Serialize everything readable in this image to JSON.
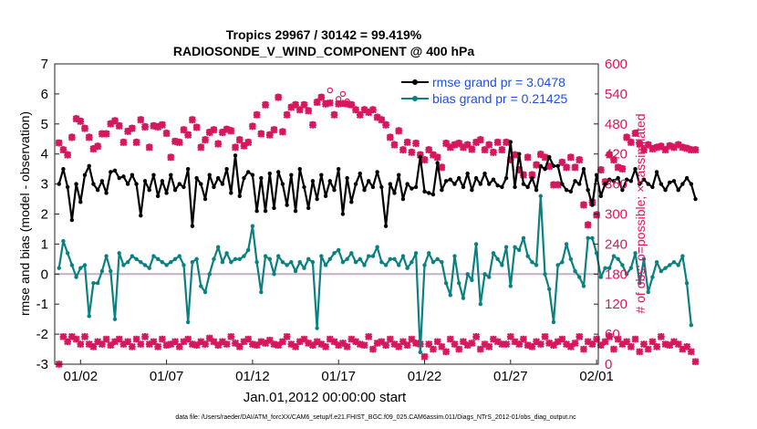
{
  "chart_data": {
    "type": "line",
    "title_line1": "Tropics 29967 / 30142 = 99.419%",
    "title_line2": "RADIOSONDE_V_WIND_COMPONENT @ 400 hPa",
    "ylabel_left": "rmse and bias (model - observation)",
    "ylabel_right": "# of obs: o=possible; ×=assimilated",
    "xlabel": "Jan.01,2012 00:00:00 start",
    "footnote": "data file: /Users/raeder/DAI/ATM_forcXX/CAM6_setup/f.e21.FHIST_BGC.f09_025.CAM6assim.011/Diags_NTrS_2012-01/obs_diag_output.nc",
    "xlim": [
      0.5,
      32.1
    ],
    "ylim_left": [
      -3,
      7
    ],
    "ylim_right": [
      0,
      600
    ],
    "left_ticks": [
      "-3",
      "-2",
      "-1",
      "0",
      "1",
      "2",
      "3",
      "4",
      "5",
      "6",
      "7"
    ],
    "right_ticks": [
      "0",
      "60",
      "120",
      "180",
      "240",
      "300",
      "360",
      "420",
      "480",
      "540",
      "600"
    ],
    "x_ticks": [
      {
        "label": "01/02",
        "x": 2
      },
      {
        "label": "01/07",
        "x": 7
      },
      {
        "label": "01/12",
        "x": 12
      },
      {
        "label": "01/17",
        "x": 17
      },
      {
        "label": "01/22",
        "x": 22
      },
      {
        "label": "01/27",
        "x": 27
      },
      {
        "label": "02/01",
        "x": 32
      }
    ],
    "legend": [
      {
        "label": "rmse grand pr = 3.0478",
        "color": "#000000"
      },
      {
        "label": "bias grand pr = 0.21425",
        "color": "#0a8080"
      }
    ],
    "colors": {
      "rmse": "#000000",
      "bias": "#0a8080",
      "obs": "#d6175e",
      "zero_line": "#c7aeca",
      "legend_text": "#1f4fe0"
    },
    "x_step": 0.25,
    "x_start": 0.75,
    "series": [
      {
        "name": "rmse",
        "values": [
          3.0,
          3.5,
          2.9,
          1.8,
          3.0,
          2.4,
          3.3,
          3.6,
          3.0,
          2.8,
          3.1,
          2.7,
          3.4,
          3.45,
          3.2,
          3.25,
          3.0,
          3.3,
          3.0,
          1.95,
          3.1,
          2.8,
          3.3,
          2.6,
          3.1,
          2.7,
          3.3,
          2.8,
          3.0,
          2.9,
          3.5,
          1.6,
          3.2,
          3.0,
          2.5,
          3.3,
          2.9,
          3.2,
          3.0,
          3.5,
          2.7,
          3.95,
          2.6,
          3.2,
          3.4,
          3.3,
          2.1,
          3.2,
          2.1,
          3.35,
          2.2,
          3.4,
          3.0,
          2.3,
          3.3,
          2.1,
          3.5,
          2.9,
          2.2,
          3.1,
          2.5,
          3.3,
          2.6,
          3.1,
          2.8,
          3.5,
          2.0,
          3.2,
          2.4,
          3.0,
          3.35,
          2.8,
          3.1,
          2.9,
          3.4,
          2.9,
          1.6,
          3.0,
          2.7,
          3.3,
          2.5,
          3.0,
          2.85,
          2.9,
          3.9,
          2.75,
          2.7,
          2.65,
          3.7,
          2.8,
          3.1,
          3.15,
          3.0,
          3.2,
          2.9,
          3.35,
          2.8,
          3.2,
          3.0,
          3.35,
          3.0,
          3.15,
          2.95,
          2.9,
          3.2,
          4.4,
          2.9,
          4.0,
          3.0,
          2.9,
          3.2,
          2.8,
          3.6,
          3.5,
          3.9,
          3.6,
          3.6,
          3.0,
          2.8,
          2.75,
          3.1,
          3.0,
          3.5,
          2.8,
          2.3,
          3.3,
          2.6,
          3.0,
          3.15,
          3.1,
          3.2,
          2.8,
          3.15,
          3.1,
          3.5,
          3.0,
          3.15,
          3.0,
          2.9,
          3.4,
          3.0,
          2.8,
          3.05,
          3.1,
          2.8,
          3.0,
          3.2,
          3.0,
          2.5
        ]
      },
      {
        "name": "bias",
        "values": [
          0.2,
          1.1,
          0.7,
          0.3,
          -0.1,
          0.2,
          0.3,
          -1.4,
          -0.3,
          -0.3,
          0.1,
          0.6,
          0.1,
          -1.5,
          0.7,
          0.3,
          0.4,
          0.6,
          0.5,
          0.4,
          0.3,
          0.2,
          0.6,
          0.5,
          0.4,
          0.3,
          0.4,
          0.5,
          0.6,
          0.3,
          -1.6,
          0.4,
          0.5,
          -0.4,
          -0.6,
          0.0,
          0.5,
          0.9,
          0.4,
          0.7,
          0.4,
          0.5,
          0.5,
          0.6,
          0.8,
          1.6,
          0.4,
          -0.6,
          0.6,
          0.5,
          0.0,
          0.6,
          0.4,
          0.3,
          0.4,
          0.1,
          0.4,
          0.2,
          0.5,
          0.4,
          -1.8,
          0.6,
          0.3,
          0.5,
          0.7,
          0.8,
          0.4,
          0.5,
          0.7,
          0.4,
          0.5,
          0.3,
          0.6,
          0.6,
          0.9,
          0.4,
          0.3,
          0.5,
          0.5,
          0.3,
          0.6,
          0.2,
          0.4,
          0.7,
          -2.6,
          0.3,
          0.7,
          0.4,
          0.5,
          0.4,
          -0.3,
          -0.7,
          0.6,
          -0.3,
          -0.8,
          0.0,
          -0.2,
          1.0,
          -1.0,
          0.0,
          -0.1,
          0.7,
          0.5,
          0.3,
          0.9,
          -0.4,
          0.9,
          0.8,
          1.2,
          0.6,
          0.4,
          0.3,
          2.6,
          0.0,
          -0.5,
          -1.6,
          0.3,
          0.4,
          1.0,
          0.5,
          0.1,
          -0.1,
          -0.4,
          1.2,
          1.2,
          0.7,
          -0.1,
          0.2,
          0.2,
          0.6,
          0.5,
          0.3,
          0.0,
          0.2,
          0.7,
          -0.3,
          0.5,
          -0.6,
          -0.1,
          0.4,
          0.1,
          0.2,
          0.3,
          0.4,
          0.3,
          0.6,
          -0.3,
          -1.7
        ]
      },
      {
        "name": "obs_possible",
        "values": [
          443,
          430,
          420,
          455,
          492,
          487,
          473,
          455,
          432,
          437,
          462,
          462,
          482,
          488,
          478,
          445,
          467,
          473,
          445,
          490,
          476,
          435,
          478,
          476,
          480,
          463,
          415,
          447,
          445,
          470,
          460,
          490,
          475,
          435,
          450,
          465,
          470,
          442,
          465,
          471,
          468,
          435,
          450,
          438,
          445,
          477,
          500,
          462,
          520,
          460,
          470,
          535,
          466,
          500,
          515,
          520,
          510,
          520,
          508,
          480,
          525,
          535,
          522,
          547,
          500,
          530,
          540,
          525,
          520,
          510,
          500,
          510,
          505,
          510,
          495,
          490,
          480,
          455,
          440,
          468,
          430,
          445,
          425,
          443,
          420,
          410,
          430,
          420,
          415,
          395,
          443,
          435,
          440,
          443,
          435,
          440,
          431,
          445,
          450,
          430,
          440,
          425,
          445,
          430,
          445,
          410,
          420,
          390,
          380,
          415,
          380,
          400,
          421,
          415,
          397,
          360,
          360,
          405,
          395,
          415,
          395,
          410,
          320,
          280,
          325,
          300,
          390,
          366,
          420,
          410,
          395,
          392,
          455,
          445,
          463,
          442,
          430,
          440,
          432,
          435,
          437,
          430,
          438,
          435,
          440,
          435,
          433,
          430,
          430
        ]
      },
      {
        "name": "obs_assimilated",
        "values": [
          442,
          428,
          418,
          453,
          490,
          485,
          471,
          453,
          430,
          435,
          460,
          460,
          480,
          486,
          476,
          443,
          465,
          471,
          443,
          488,
          474,
          433,
          476,
          474,
          478,
          461,
          413,
          445,
          443,
          468,
          458,
          488,
          473,
          433,
          448,
          463,
          468,
          440,
          463,
          469,
          466,
          433,
          448,
          436,
          443,
          475,
          498,
          460,
          518,
          458,
          468,
          533,
          464,
          498,
          513,
          518,
          508,
          518,
          506,
          478,
          523,
          533,
          520,
          522,
          498,
          520,
          521,
          520,
          518,
          508,
          498,
          508,
          503,
          508,
          493,
          488,
          478,
          453,
          438,
          466,
          428,
          443,
          423,
          441,
          418,
          408,
          428,
          418,
          413,
          393,
          441,
          433,
          438,
          441,
          433,
          438,
          429,
          443,
          448,
          428,
          438,
          423,
          443,
          428,
          443,
          408,
          418,
          388,
          378,
          413,
          378,
          398,
          419,
          413,
          395,
          358,
          358,
          403,
          393,
          413,
          393,
          408,
          318,
          278,
          323,
          298,
          388,
          364,
          418,
          408,
          393,
          390,
          453,
          443,
          461,
          440,
          428,
          438,
          430,
          433,
          435,
          428,
          436,
          433,
          438,
          433,
          431,
          428,
          428
        ]
      },
      {
        "name": "obs_possible_low",
        "values": [
          0,
          55,
          45,
          55,
          50,
          40,
          55,
          40,
          35,
          45,
          40,
          50,
          38,
          45,
          50,
          40,
          45,
          35,
          50,
          40,
          55,
          40,
          45,
          35,
          50,
          38,
          40,
          45,
          35,
          45,
          50,
          40,
          38,
          45,
          40,
          52,
          45,
          38,
          45,
          40,
          55,
          42,
          35,
          45,
          50,
          40,
          38,
          45,
          42,
          48,
          40,
          38,
          45,
          55,
          40,
          35,
          45,
          50,
          42,
          38,
          45,
          40,
          35,
          50,
          45,
          38,
          42,
          35,
          50,
          45,
          40,
          38,
          55,
          30,
          42,
          45,
          38,
          50,
          40,
          35,
          45,
          38,
          50,
          42,
          40,
          15,
          40,
          30,
          45,
          35,
          25,
          50,
          40,
          30,
          45,
          38,
          42,
          55,
          30,
          40,
          35,
          50,
          45,
          40,
          40,
          55,
          45,
          40,
          50,
          38,
          35,
          45,
          40,
          55,
          42,
          38,
          45,
          50,
          40,
          35,
          42,
          55,
          30,
          45,
          40,
          50,
          38,
          45,
          55,
          30,
          50,
          40,
          45,
          35,
          50,
          25,
          40,
          30,
          45,
          35,
          55,
          40,
          38,
          45,
          40,
          30,
          35,
          25,
          5
        ]
      }
    ]
  }
}
